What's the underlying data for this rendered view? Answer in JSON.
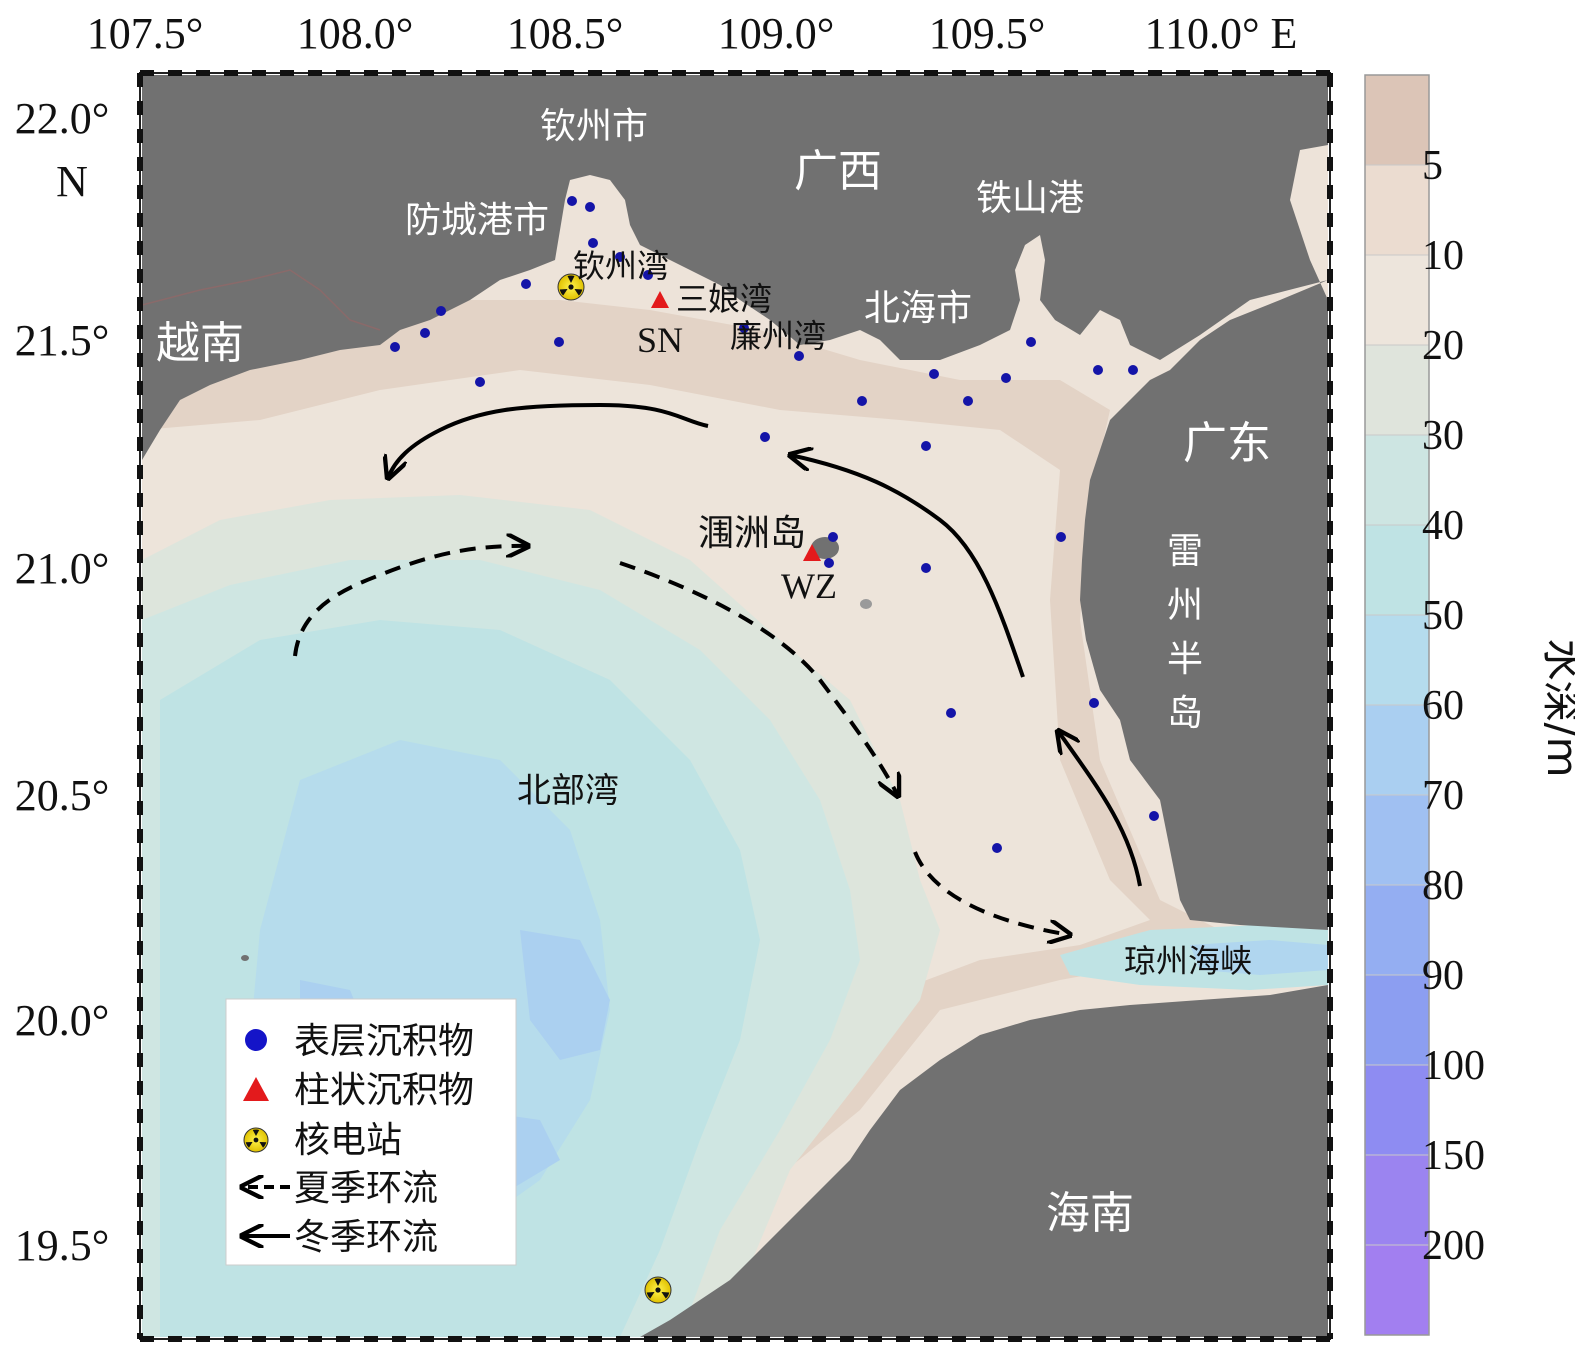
{
  "colors": {
    "land": "#717171",
    "shallow": "#e5d6ca",
    "sand": "#ede3d9",
    "mid": "#d8e5e0",
    "deep": "#bfe2e3",
    "deeper": "#b4d9ea",
    "deepest": "#a8c8ee",
    "station": "#1414a8",
    "core": "#e31a1c",
    "arrow": "#000000"
  },
  "axes": {
    "lon_ticks": [
      "107.5°",
      "108.0°",
      "108.5°",
      "109.0°",
      "109.5°",
      "110.0° E"
    ],
    "lat_ticks": [
      "22.0°",
      "21.5°",
      "21.0°",
      "20.5°",
      "20.0°",
      "19.5°"
    ],
    "lat_unit": "N"
  },
  "colorbar": {
    "title": "水深/m",
    "labels": [
      "5",
      "10",
      "20",
      "30",
      "40",
      "50",
      "60",
      "70",
      "80",
      "90",
      "100",
      "150",
      "200"
    ],
    "band_colors": [
      "#dcc5b7",
      "#ebdcd0",
      "#ede5dc",
      "#dfe4dc",
      "#cde5e2",
      "#bfe3e4",
      "#b5dced",
      "#aacff1",
      "#a0c0f2",
      "#94aef2",
      "#8c9ef1",
      "#8e8cf2",
      "#9b84f0",
      "#a27ff0"
    ]
  },
  "places": {
    "qinzhou_city": "钦州市",
    "guangxi": "广西",
    "tieshan_port": "铁山港",
    "fangchenggang_city": "防城港市",
    "qinzhou_bay": "钦州湾",
    "sanniang_bay": "三娘湾",
    "lianzhou_bay": "廉州湾",
    "beihai_city": "北海市",
    "vietnam": "越南",
    "sn": "SN",
    "guangdong": "广东",
    "weizhou_island": "涠洲岛",
    "wz": "WZ",
    "leizhou_peninsula": [
      "雷",
      "州",
      "半",
      "岛"
    ],
    "beibu_gulf": "北部湾",
    "qiongzhou_strait": "琼州海峡",
    "hainan": "海南"
  },
  "legend": {
    "surface_sediment": "表层沉积物",
    "core_sediment": "柱状沉积物",
    "nuclear_plant": "核电站",
    "summer_circulation": "夏季环流",
    "winter_circulation": "冬季环流"
  }
}
